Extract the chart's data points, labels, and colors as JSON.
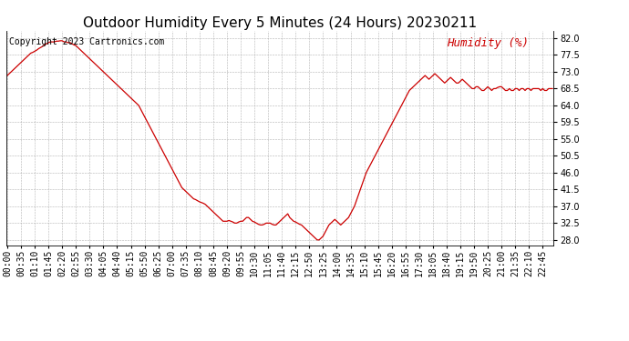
{
  "title": "Outdoor Humidity Every 5 Minutes (24 Hours) 20230211",
  "copyright_text": "Copyright 2023 Cartronics.com",
  "legend_label": "Humidity (%)",
  "line_color": "#cc0000",
  "legend_color": "#cc0000",
  "background_color": "#ffffff",
  "grid_color": "#aaaaaa",
  "ylim": [
    26.5,
    84.0
  ],
  "yticks": [
    28.0,
    32.5,
    37.0,
    41.5,
    46.0,
    50.5,
    55.0,
    59.5,
    64.0,
    68.5,
    73.0,
    77.5,
    82.0
  ],
  "title_fontsize": 11,
  "copyright_fontsize": 7,
  "tick_fontsize": 7,
  "legend_fontsize": 9,
  "humidity_data": [
    72.0,
    72.5,
    73.0,
    73.5,
    74.0,
    74.5,
    75.0,
    75.5,
    76.0,
    76.5,
    77.0,
    77.5,
    78.0,
    78.2,
    78.5,
    78.8,
    79.2,
    79.5,
    79.8,
    80.2,
    80.5,
    80.8,
    81.0,
    81.0,
    81.0,
    81.2,
    81.2,
    81.3,
    81.3,
    81.0,
    81.0,
    80.8,
    80.8,
    80.5,
    80.2,
    80.0,
    79.5,
    79.0,
    78.5,
    78.0,
    77.5,
    77.0,
    76.5,
    76.0,
    75.5,
    75.0,
    74.5,
    74.0,
    73.5,
    73.0,
    72.5,
    72.0,
    71.5,
    71.0,
    70.5,
    70.0,
    69.5,
    69.0,
    68.5,
    68.0,
    67.5,
    67.0,
    66.5,
    66.0,
    65.5,
    65.0,
    64.5,
    64.0,
    63.0,
    62.0,
    61.0,
    60.0,
    59.0,
    58.0,
    57.0,
    56.0,
    55.0,
    54.0,
    53.0,
    52.0,
    51.0,
    50.0,
    49.0,
    48.0,
    47.0,
    46.0,
    45.0,
    44.0,
    43.0,
    42.0,
    41.5,
    41.0,
    40.5,
    40.0,
    39.5,
    39.0,
    38.8,
    38.5,
    38.2,
    38.0,
    37.8,
    37.5,
    37.0,
    36.5,
    36.0,
    35.5,
    35.0,
    34.5,
    34.0,
    33.5,
    33.0,
    33.0,
    33.0,
    33.2,
    33.0,
    32.8,
    32.5,
    32.5,
    32.8,
    33.0,
    33.0,
    33.5,
    34.0,
    34.0,
    33.5,
    33.0,
    32.8,
    32.5,
    32.2,
    32.0,
    32.0,
    32.2,
    32.5,
    32.5,
    32.5,
    32.2,
    32.0,
    32.0,
    32.5,
    33.0,
    33.5,
    34.0,
    34.5,
    35.0,
    34.0,
    33.5,
    33.0,
    32.8,
    32.5,
    32.2,
    32.0,
    31.5,
    31.0,
    30.5,
    30.0,
    29.5,
    29.0,
    28.5,
    28.0,
    28.0,
    28.5,
    29.0,
    30.0,
    31.0,
    32.0,
    32.5,
    33.0,
    33.5,
    33.0,
    32.5,
    32.0,
    32.5,
    33.0,
    33.5,
    34.0,
    35.0,
    36.0,
    37.0,
    38.5,
    40.0,
    41.5,
    43.0,
    44.5,
    46.0,
    47.0,
    48.0,
    49.0,
    50.0,
    51.0,
    52.0,
    53.0,
    54.0,
    55.0,
    56.0,
    57.0,
    58.0,
    59.0,
    60.0,
    61.0,
    62.0,
    63.0,
    64.0,
    65.0,
    66.0,
    67.0,
    68.0,
    68.5,
    69.0,
    69.5,
    70.0,
    70.5,
    71.0,
    71.5,
    72.0,
    71.5,
    71.0,
    71.5,
    72.0,
    72.5,
    72.0,
    71.5,
    71.0,
    70.5,
    70.0,
    70.5,
    71.0,
    71.5,
    71.0,
    70.5,
    70.0,
    70.0,
    70.5,
    71.0,
    70.5,
    70.0,
    69.5,
    69.0,
    68.5,
    68.5,
    69.0,
    69.0,
    68.5,
    68.0,
    68.0,
    68.5,
    69.0,
    68.5,
    68.0,
    68.5,
    68.5,
    68.8,
    69.0,
    69.0,
    68.5,
    68.0,
    68.0,
    68.5,
    68.0,
    68.0,
    68.5,
    68.5,
    68.0,
    68.5,
    68.5,
    68.0,
    68.5,
    68.5,
    68.0,
    68.5,
    68.5,
    68.5,
    68.5,
    68.0,
    68.5,
    68.0,
    68.0,
    68.5,
    68.5,
    68.5
  ]
}
